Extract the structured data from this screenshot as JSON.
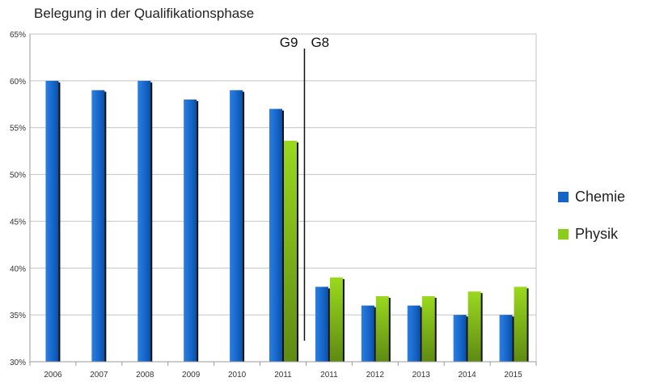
{
  "chart_data": {
    "type": "bar",
    "title": "Belegung in der Qualifikationsphase",
    "categories": [
      "2006",
      "2007",
      "2008",
      "2009",
      "2010",
      "2011",
      "2011",
      "2012",
      "2013",
      "2014",
      "2015"
    ],
    "series": [
      {
        "name": "Chemie",
        "values": [
          60,
          59,
          60,
          58,
          59,
          57,
          38,
          36,
          36,
          35,
          35
        ],
        "color": "#1565c8"
      },
      {
        "name": "Physik",
        "values": [
          null,
          null,
          null,
          null,
          null,
          53.6,
          39,
          37,
          37,
          37.5,
          38
        ],
        "color": "#8ccc1a"
      }
    ],
    "ylim": [
      30,
      65
    ],
    "yticks": [
      30,
      35,
      40,
      45,
      50,
      55,
      60,
      65
    ],
    "ytick_suffix": "%",
    "grid": true,
    "legend_position": "right",
    "annotations": {
      "left_label": "G9",
      "right_label": "G8"
    },
    "xlabel": "",
    "ylabel": ""
  }
}
